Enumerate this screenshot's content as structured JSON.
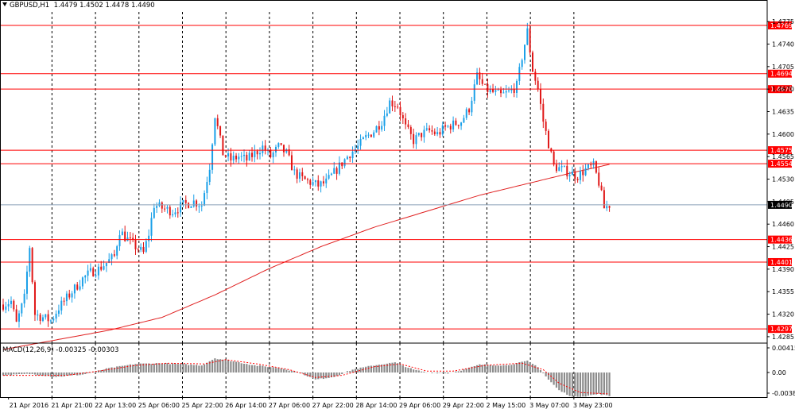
{
  "header": {
    "symbol": "GBPUSD,H1",
    "ohlc": "1.4479 1.4502 1.4478 1.4490"
  },
  "macd": {
    "label": "MACD(12,26,9) -0.00325 -0.00303",
    "axis_labels": [
      "0.00415",
      "0.00",
      "-0.00382"
    ]
  },
  "colors": {
    "bull": "#1aa0e8",
    "bear": "#e01818",
    "level": "#ff0000",
    "ma": "#e02020",
    "hist": "#8c8c8c",
    "signal": "#ff0000",
    "current_line": "#8aa0b8"
  },
  "chart_data": {
    "type": "candlestick",
    "symbol": "GBPUSD",
    "timeframe": "H1",
    "y_ticks": [
      "1.4775",
      "1.4740",
      "1.4705",
      "1.4670",
      "1.4635",
      "1.4600",
      "1.4565",
      "1.4530",
      "1.4495",
      "1.4460",
      "1.4425",
      "1.4390",
      "1.4355",
      "1.4320",
      "1.4285"
    ],
    "ylim": [
      1.4275,
      1.479
    ],
    "x_labels": [
      "21 Apr 2016",
      "21 Apr 21:00",
      "22 Apr 13:00",
      "25 Apr 06:00",
      "25 Apr 22:00",
      "26 Apr 14:00",
      "27 Apr 06:00",
      "27 Apr 22:00",
      "28 Apr 14:00",
      "29 Apr 06:00",
      "29 Apr 22:00",
      "2 May 15:00",
      "3 May 07:00",
      "3 May 23:00"
    ],
    "horizontal_levels": [
      "1.4769",
      "1.4694",
      "1.4670",
      "1.4575",
      "1.4554",
      "1.4436",
      "1.4401",
      "1.4297"
    ],
    "current_price": "1.4490",
    "moving_average": [
      [
        0,
        1.4265
      ],
      [
        20,
        1.428
      ],
      [
        40,
        1.4295
      ],
      [
        60,
        1.4315
      ],
      [
        80,
        1.435
      ],
      [
        100,
        1.439
      ],
      [
        120,
        1.4425
      ],
      [
        140,
        1.4455
      ],
      [
        160,
        1.448
      ],
      [
        180,
        1.4505
      ],
      [
        200,
        1.4525
      ],
      [
        215,
        1.454
      ],
      [
        229,
        1.4553
      ]
    ],
    "price_path": [
      [
        0,
        1.4335
      ],
      [
        3,
        1.434
      ],
      [
        5,
        1.4305
      ],
      [
        8,
        1.4345
      ],
      [
        10,
        1.4425
      ],
      [
        12,
        1.432
      ],
      [
        15,
        1.4315
      ],
      [
        18,
        1.431
      ],
      [
        21,
        1.433
      ],
      [
        24,
        1.4345
      ],
      [
        27,
        1.436
      ],
      [
        30,
        1.4375
      ],
      [
        33,
        1.4385
      ],
      [
        36,
        1.439
      ],
      [
        39,
        1.44
      ],
      [
        42,
        1.441
      ],
      [
        44,
        1.445
      ],
      [
        46,
        1.444
      ],
      [
        50,
        1.4425
      ],
      [
        53,
        1.4415
      ],
      [
        55,
        1.4445
      ],
      [
        57,
        1.449
      ],
      [
        60,
        1.4485
      ],
      [
        64,
        1.448
      ],
      [
        68,
        1.449
      ],
      [
        72,
        1.4495
      ],
      [
        75,
        1.449
      ],
      [
        78,
        1.455
      ],
      [
        80,
        1.463
      ],
      [
        83,
        1.457
      ],
      [
        86,
        1.456
      ],
      [
        89,
        1.4565
      ],
      [
        92,
        1.456
      ],
      [
        95,
        1.457
      ],
      [
        98,
        1.458
      ],
      [
        101,
        1.4565
      ],
      [
        104,
        1.458
      ],
      [
        107,
        1.457
      ],
      [
        110,
        1.454
      ],
      [
        113,
        1.453
      ],
      [
        116,
        1.4525
      ],
      [
        119,
        1.452
      ],
      [
        122,
        1.4525
      ],
      [
        125,
        1.454
      ],
      [
        128,
        1.4555
      ],
      [
        131,
        1.457
      ],
      [
        134,
        1.458
      ],
      [
        137,
        1.4595
      ],
      [
        140,
        1.4605
      ],
      [
        143,
        1.462
      ],
      [
        146,
        1.465
      ],
      [
        149,
        1.4645
      ],
      [
        152,
        1.461
      ],
      [
        155,
        1.459
      ],
      [
        158,
        1.46
      ],
      [
        161,
        1.4605
      ],
      [
        164,
        1.46
      ],
      [
        167,
        1.461
      ],
      [
        170,
        1.4615
      ],
      [
        173,
        1.462
      ],
      [
        176,
        1.464
      ],
      [
        179,
        1.469
      ],
      [
        182,
        1.467
      ],
      [
        185,
        1.4665
      ],
      [
        188,
        1.466
      ],
      [
        191,
        1.4665
      ],
      [
        194,
        1.4675
      ],
      [
        196,
        1.472
      ],
      [
        198,
        1.476
      ],
      [
        200,
        1.47
      ],
      [
        202,
        1.467
      ],
      [
        204,
        1.462
      ],
      [
        206,
        1.4585
      ],
      [
        208,
        1.455
      ],
      [
        211,
        1.4545
      ],
      [
        214,
        1.454
      ],
      [
        217,
        1.4535
      ],
      [
        220,
        1.4545
      ],
      [
        223,
        1.455
      ],
      [
        225,
        1.4525
      ],
      [
        227,
        1.4485
      ],
      [
        229,
        1.449
      ]
    ],
    "macd_hist": [
      [
        0,
        -0.0004
      ],
      [
        10,
        -0.0002
      ],
      [
        20,
        -0.0006
      ],
      [
        30,
        -0.0003
      ],
      [
        40,
        0.0006
      ],
      [
        50,
        0.0012
      ],
      [
        60,
        0.0013
      ],
      [
        70,
        0.0011
      ],
      [
        75,
        0.001
      ],
      [
        80,
        0.002
      ],
      [
        85,
        0.0017
      ],
      [
        95,
        0.001
      ],
      [
        105,
        0.0006
      ],
      [
        112,
        0.0
      ],
      [
        118,
        -0.001
      ],
      [
        125,
        -0.0006
      ],
      [
        132,
        0.0004
      ],
      [
        140,
        0.001
      ],
      [
        148,
        0.0014
      ],
      [
        155,
        0.0004
      ],
      [
        160,
        0.0
      ],
      [
        168,
        -0.0001
      ],
      [
        174,
        0.0004
      ],
      [
        180,
        0.0011
      ],
      [
        190,
        0.001
      ],
      [
        198,
        0.0016
      ],
      [
        202,
        0.0008
      ],
      [
        206,
        -0.001
      ],
      [
        210,
        -0.0025
      ],
      [
        215,
        -0.0034
      ],
      [
        220,
        -0.0033
      ],
      [
        225,
        -0.003
      ],
      [
        229,
        -0.0033
      ]
    ],
    "macd_signal": [
      [
        0,
        -0.0004
      ],
      [
        12,
        -0.0004
      ],
      [
        24,
        -0.0004
      ],
      [
        36,
        0.0002
      ],
      [
        50,
        0.001
      ],
      [
        62,
        0.0013
      ],
      [
        76,
        0.0012
      ],
      [
        84,
        0.0018
      ],
      [
        96,
        0.0012
      ],
      [
        108,
        0.0004
      ],
      [
        118,
        -0.0007
      ],
      [
        128,
        -0.0004
      ],
      [
        140,
        0.0008
      ],
      [
        150,
        0.0012
      ],
      [
        160,
        0.0002
      ],
      [
        170,
        0.0002
      ],
      [
        182,
        0.001
      ],
      [
        196,
        0.0013
      ],
      [
        204,
        0.0004
      ],
      [
        210,
        -0.0015
      ],
      [
        218,
        -0.0028
      ],
      [
        229,
        -0.003
      ]
    ]
  }
}
